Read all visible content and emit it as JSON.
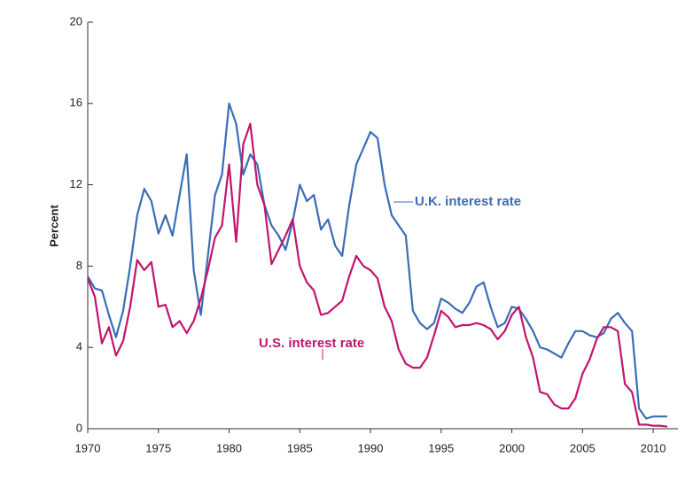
{
  "chart_data": {
    "type": "line",
    "y_label": "Percent",
    "x": [
      1970,
      1970.5,
      1971,
      1971.5,
      1972,
      1972.5,
      1973,
      1973.5,
      1974,
      1974.5,
      1975,
      1975.5,
      1976,
      1976.5,
      1977,
      1977.5,
      1978,
      1978.5,
      1979,
      1979.5,
      1980,
      1980.5,
      1981,
      1981.5,
      1982,
      1982.5,
      1983,
      1983.5,
      1984,
      1984.5,
      1985,
      1985.5,
      1986,
      1986.5,
      1987,
      1987.5,
      1988,
      1988.5,
      1989,
      1989.5,
      1990,
      1990.5,
      1991,
      1991.5,
      1992,
      1992.5,
      1993,
      1993.5,
      1994,
      1994.5,
      1995,
      1995.5,
      1996,
      1996.5,
      1997,
      1997.5,
      1998,
      1998.5,
      1999,
      1999.5,
      2000,
      2000.5,
      2001,
      2001.5,
      2002,
      2002.5,
      2003,
      2003.5,
      2004,
      2004.5,
      2005,
      2005.5,
      2006,
      2006.5,
      2007,
      2007.5,
      2008,
      2008.5,
      2009,
      2009.5,
      2010,
      2010.5,
      2011
    ],
    "series": [
      {
        "name": "U.K. interest rate",
        "color": "#3a6db5",
        "values": [
          7.5,
          6.9,
          6.8,
          5.6,
          4.5,
          5.8,
          8.0,
          10.5,
          11.8,
          11.2,
          9.6,
          10.5,
          9.5,
          11.5,
          13.5,
          7.8,
          5.6,
          8.5,
          11.5,
          12.5,
          16.0,
          15.0,
          12.5,
          13.5,
          13.0,
          11.0,
          10.0,
          9.5,
          8.8,
          10.2,
          12.0,
          11.2,
          11.5,
          9.8,
          10.3,
          9.0,
          8.5,
          11.0,
          13.0,
          13.8,
          14.6,
          14.3,
          12.0,
          10.5,
          10.0,
          9.5,
          5.8,
          5.2,
          4.9,
          5.2,
          6.4,
          6.2,
          5.9,
          5.7,
          6.2,
          7.0,
          7.2,
          6.0,
          5.0,
          5.2,
          6.0,
          5.9,
          5.4,
          4.8,
          4.0,
          3.9,
          3.7,
          3.5,
          4.2,
          4.8,
          4.8,
          4.6,
          4.5,
          4.7,
          5.4,
          5.7,
          5.2,
          4.8,
          1.0,
          0.5,
          0.6,
          0.6,
          0.6
        ]
      },
      {
        "name": "U.S. interest rate",
        "color": "#c0156e",
        "values": [
          7.4,
          6.5,
          4.2,
          5.0,
          3.6,
          4.3,
          6.0,
          8.3,
          7.8,
          8.2,
          6.0,
          6.1,
          5.0,
          5.3,
          4.7,
          5.3,
          6.4,
          7.8,
          9.4,
          10.0,
          13.0,
          9.2,
          14.0,
          15.0,
          12.0,
          11.0,
          8.1,
          8.8,
          9.5,
          10.3,
          8.0,
          7.2,
          6.8,
          5.6,
          5.7,
          6.0,
          6.3,
          7.5,
          8.5,
          8.0,
          7.8,
          7.4,
          6.0,
          5.3,
          3.9,
          3.2,
          3.0,
          3.0,
          3.5,
          4.6,
          5.8,
          5.5,
          5.0,
          5.1,
          5.1,
          5.2,
          5.1,
          4.9,
          4.4,
          4.8,
          5.6,
          6.0,
          4.5,
          3.5,
          1.8,
          1.7,
          1.2,
          1.0,
          1.0,
          1.5,
          2.7,
          3.4,
          4.4,
          5.0,
          5.0,
          4.8,
          2.2,
          1.8,
          0.2,
          0.2,
          0.15,
          0.15,
          0.1
        ]
      }
    ],
    "xlim": [
      1970,
      2011.75
    ],
    "xticks": [
      1970,
      1975,
      1980,
      1985,
      1990,
      1995,
      2000,
      2005,
      2010
    ],
    "ylim": [
      0,
      20
    ],
    "yticks": [
      0,
      4,
      8,
      12,
      16,
      20
    ],
    "grid": false
  }
}
